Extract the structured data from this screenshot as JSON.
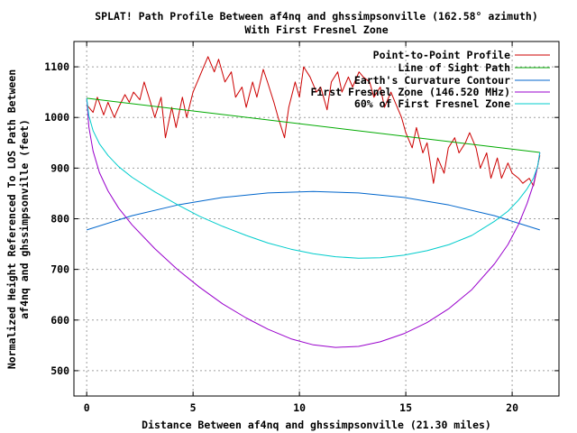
{
  "chart_data": {
    "type": "line",
    "title_line1": "SPLAT! Path Profile Between af4nq and ghssimpsonville (162.58° azimuth)",
    "title_line2": "With First Fresnel Zone",
    "xlabel": "Distance Between af4nq and ghssimpsonville (21.30 miles)",
    "ylabel_line1": "Normalized Height Referenced To LOS Path Between",
    "ylabel_line2": "af4nq and ghssimpsonville (feet)",
    "xlim": [
      -0.6,
      22.2
    ],
    "ylim": [
      450,
      1150
    ],
    "xticks": [
      0,
      5,
      10,
      15,
      20
    ],
    "yticks": [
      500,
      600,
      700,
      800,
      900,
      1000,
      1100
    ],
    "grid": true,
    "legend_position": "top-right",
    "series": [
      {
        "name": "Point-to-Point Profile",
        "color": "#cc0000",
        "x": [
          0,
          0.3,
          0.5,
          0.8,
          1.0,
          1.3,
          1.5,
          1.8,
          2.0,
          2.2,
          2.5,
          2.7,
          3.0,
          3.2,
          3.5,
          3.7,
          4.0,
          4.2,
          4.5,
          4.7,
          5.0,
          5.3,
          5.5,
          5.7,
          6.0,
          6.2,
          6.5,
          6.8,
          7.0,
          7.3,
          7.5,
          7.8,
          8.0,
          8.3,
          8.5,
          8.8,
          9.0,
          9.3,
          9.5,
          9.8,
          10.0,
          10.2,
          10.5,
          10.8,
          11.0,
          11.3,
          11.5,
          11.8,
          12.0,
          12.3,
          12.5,
          12.8,
          13.0,
          13.3,
          13.5,
          13.8,
          14.0,
          14.3,
          14.5,
          14.8,
          15.0,
          15.3,
          15.5,
          15.8,
          16.0,
          16.3,
          16.5,
          16.8,
          17.0,
          17.3,
          17.5,
          17.8,
          18.0,
          18.3,
          18.5,
          18.8,
          19.0,
          19.3,
          19.5,
          19.8,
          20.0,
          20.3,
          20.5,
          20.8,
          21.0,
          21.3
        ],
        "y": [
          1025,
          1010,
          1040,
          1005,
          1030,
          1000,
          1020,
          1045,
          1030,
          1050,
          1035,
          1070,
          1030,
          1000,
          1040,
          960,
          1020,
          980,
          1040,
          1000,
          1050,
          1080,
          1100,
          1120,
          1090,
          1115,
          1070,
          1090,
          1040,
          1060,
          1020,
          1070,
          1040,
          1095,
          1070,
          1030,
          1000,
          960,
          1020,
          1070,
          1040,
          1100,
          1080,
          1050,
          1060,
          1015,
          1070,
          1090,
          1050,
          1080,
          1060,
          1090,
          1080,
          1070,
          1040,
          1060,
          1020,
          1050,
          1030,
          1000,
          970,
          940,
          980,
          930,
          950,
          870,
          920,
          890,
          940,
          960,
          930,
          950,
          970,
          940,
          900,
          930,
          880,
          920,
          880,
          910,
          890,
          880,
          870,
          880,
          865,
          925
        ]
      },
      {
        "name": "Line of Sight Path",
        "color": "#00aa00",
        "x": [
          0,
          21.3
        ],
        "y": [
          1038,
          931
        ]
      },
      {
        "name": "Earth's Curvature Contour",
        "color": "#0066cc",
        "x": [
          0,
          2.13,
          4.26,
          6.39,
          8.52,
          10.65,
          12.78,
          14.91,
          17.04,
          19.17,
          21.3
        ],
        "y": [
          778,
          806,
          827,
          842,
          851,
          854,
          851,
          842,
          827,
          806,
          778
        ]
      },
      {
        "name": "First Fresnel Zone (146.520 MHz)",
        "color": "#9900cc",
        "x": [
          0,
          0.1,
          0.3,
          0.6,
          1.0,
          1.5,
          2.13,
          3.2,
          4.26,
          5.3,
          6.39,
          7.5,
          8.52,
          9.6,
          10.65,
          11.7,
          12.78,
          13.8,
          14.91,
          16.0,
          17.04,
          18.1,
          19.17,
          19.8,
          20.3,
          20.7,
          21.0,
          21.2,
          21.3
        ],
        "y": [
          1038,
          982,
          934,
          891,
          855,
          821,
          788,
          741,
          700,
          665,
          632,
          604,
          582,
          563,
          551,
          546,
          548,
          557,
          573,
          595,
          623,
          660,
          711,
          749,
          789,
          830,
          868,
          904,
          931
        ]
      },
      {
        "name": "60% of First Fresnel Zone",
        "color": "#00cccc",
        "x": [
          0,
          0.1,
          0.3,
          0.6,
          1.0,
          1.5,
          2.13,
          3.2,
          4.26,
          5.3,
          6.39,
          7.5,
          8.52,
          9.6,
          10.65,
          11.7,
          12.78,
          13.8,
          14.91,
          16.0,
          17.04,
          18.1,
          19.17,
          19.8,
          20.3,
          20.7,
          21.0,
          21.2,
          21.3
        ],
        "y": [
          1038,
          1004,
          974,
          948,
          925,
          903,
          882,
          853,
          828,
          805,
          785,
          767,
          752,
          740,
          731,
          725,
          722,
          723,
          728,
          737,
          749,
          767,
          795,
          815,
          837,
          859,
          880,
          904,
          931
        ]
      }
    ]
  }
}
